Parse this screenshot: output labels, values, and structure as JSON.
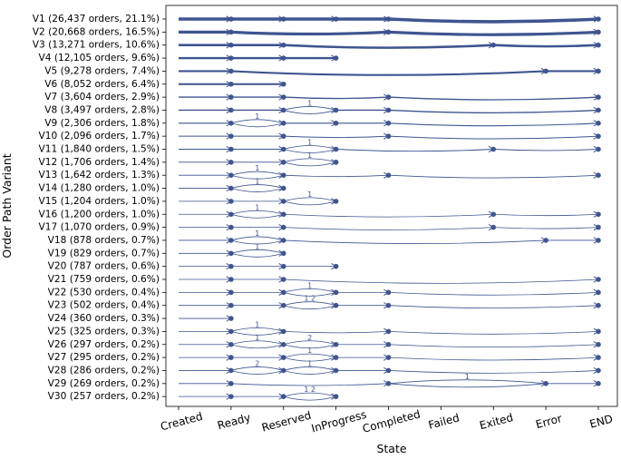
{
  "chart_data": {
    "type": "line",
    "title": "",
    "xlabel": "State",
    "ylabel": "Order Path Variant",
    "categories": [
      "Created",
      "Ready",
      "Reserved",
      "InProgress",
      "Completed",
      "Failed",
      "Exited",
      "Error",
      "END"
    ],
    "grid": false,
    "legend": "none",
    "color": "#3f5590",
    "series": [
      {
        "name": "V1 (26,437 orders, 21.1%)",
        "orders": 26437,
        "pct": 21.1,
        "path": [
          "Created",
          "Ready",
          "Reserved",
          "InProgress",
          "Completed",
          "END"
        ]
      },
      {
        "name": "V2 (20,668 orders, 16.5%)",
        "orders": 20668,
        "pct": 16.5,
        "path": [
          "Created",
          "Ready",
          "Completed",
          "END"
        ]
      },
      {
        "name": "V3 (13,271 orders, 10.6%)",
        "orders": 13271,
        "pct": 10.6,
        "path": [
          "Created",
          "Ready",
          "Reserved",
          "Exited",
          "END"
        ]
      },
      {
        "name": "V4 (12,105 orders, 9.6%)",
        "orders": 12105,
        "pct": 9.6,
        "path": [
          "Created",
          "Ready",
          "Reserved",
          "InProgress"
        ]
      },
      {
        "name": "V5 (9,278 orders, 7.4%)",
        "orders": 9278,
        "pct": 7.4,
        "path": [
          "Created",
          "Ready",
          "Error",
          "END"
        ]
      },
      {
        "name": "V6 (8,052 orders, 6.4%)",
        "orders": 8052,
        "pct": 6.4,
        "path": [
          "Created",
          "Ready",
          "Reserved"
        ]
      },
      {
        "name": "V7 (3,604 orders, 2.9%)",
        "orders": 3604,
        "pct": 2.9,
        "path": [
          "Created",
          "Ready",
          "Reserved",
          "Completed",
          "END"
        ]
      },
      {
        "name": "V8 (3,497 orders, 2.8%)",
        "orders": 3497,
        "pct": 2.8,
        "path": [
          "Created",
          "Ready",
          "Reserved",
          "InProgress",
          "Completed",
          "END"
        ],
        "loops": [
          {
            "from": "Reserved",
            "to": "InProgress",
            "label": "1"
          }
        ]
      },
      {
        "name": "V9 (2,306 orders, 1.8%)",
        "orders": 2306,
        "pct": 1.8,
        "path": [
          "Created",
          "Ready",
          "Reserved",
          "InProgress",
          "Completed",
          "END"
        ],
        "loops": [
          {
            "from": "Ready",
            "to": "Reserved",
            "label": "1"
          }
        ]
      },
      {
        "name": "V10 (2,096 orders, 1.7%)",
        "orders": 2096,
        "pct": 1.7,
        "path": [
          "Created",
          "Ready",
          "Reserved",
          "Completed",
          "END"
        ]
      },
      {
        "name": "V11 (1,840 orders, 1.5%)",
        "orders": 1840,
        "pct": 1.5,
        "path": [
          "Created",
          "Ready",
          "Reserved",
          "InProgress",
          "Exited",
          "END"
        ],
        "loops": [
          {
            "from": "Reserved",
            "to": "InProgress",
            "label": "1"
          }
        ]
      },
      {
        "name": "V12 (1,706 orders, 1.4%)",
        "orders": 1706,
        "pct": 1.4,
        "path": [
          "Created",
          "Ready",
          "Reserved",
          "InProgress"
        ],
        "loops": [
          {
            "from": "Reserved",
            "to": "InProgress",
            "label": "1"
          }
        ]
      },
      {
        "name": "V13 (1,642 orders, 1.3%)",
        "orders": 1642,
        "pct": 1.3,
        "path": [
          "Created",
          "Ready",
          "Reserved",
          "Completed",
          "END"
        ],
        "loops": [
          {
            "from": "Ready",
            "to": "Reserved",
            "label": "1"
          }
        ]
      },
      {
        "name": "V14 (1,280 orders, 1.0%)",
        "orders": 1280,
        "pct": 1.0,
        "path": [
          "Created",
          "Ready",
          "Reserved"
        ],
        "loops": [
          {
            "from": "Ready",
            "to": "Reserved",
            "label": "1"
          }
        ]
      },
      {
        "name": "V15 (1,204 orders, 1.0%)",
        "orders": 1204,
        "pct": 1.0,
        "path": [
          "Created",
          "Ready",
          "Reserved",
          "InProgress"
        ],
        "loops": [
          {
            "from": "Reserved",
            "to": "InProgress",
            "label": "1"
          }
        ]
      },
      {
        "name": "V16 (1,200 orders, 1.0%)",
        "orders": 1200,
        "pct": 1.0,
        "path": [
          "Created",
          "Ready",
          "Reserved",
          "Exited",
          "END"
        ],
        "loops": [
          {
            "from": "Ready",
            "to": "Reserved",
            "label": "1"
          }
        ]
      },
      {
        "name": "V17 (1,070 orders, 0.9%)",
        "orders": 1070,
        "pct": 0.9,
        "path": [
          "Created",
          "Ready",
          "Reserved",
          "Exited",
          "END"
        ]
      },
      {
        "name": "V18 (878 orders, 0.7%)",
        "orders": 878,
        "pct": 0.7,
        "path": [
          "Created",
          "Ready",
          "Reserved",
          "Error",
          "END"
        ],
        "loops": [
          {
            "from": "Ready",
            "to": "Reserved",
            "label": "1"
          }
        ]
      },
      {
        "name": "V19 (829 orders, 0.7%)",
        "orders": 829,
        "pct": 0.7,
        "path": [
          "Created",
          "Ready",
          "Reserved"
        ],
        "loops": [
          {
            "from": "Ready",
            "to": "Reserved",
            "label": "1"
          }
        ]
      },
      {
        "name": "V20 (787 orders, 0.6%)",
        "orders": 787,
        "pct": 0.6,
        "path": [
          "Created",
          "Ready",
          "Reserved",
          "InProgress"
        ]
      },
      {
        "name": "V21 (759 orders, 0.6%)",
        "orders": 759,
        "pct": 0.6,
        "path": [
          "Created",
          "Ready",
          "Reserved",
          "END"
        ]
      },
      {
        "name": "V22 (530 orders, 0.4%)",
        "orders": 530,
        "pct": 0.4,
        "path": [
          "Created",
          "Ready",
          "Reserved",
          "InProgress",
          "Completed",
          "END"
        ],
        "loops": [
          {
            "from": "Reserved",
            "to": "InProgress",
            "label": "1"
          }
        ]
      },
      {
        "name": "V23 (502 orders, 0.4%)",
        "orders": 502,
        "pct": 0.4,
        "path": [
          "Created",
          "Ready",
          "Reserved",
          "InProgress",
          "Completed",
          "END"
        ],
        "loops": [
          {
            "from": "Reserved",
            "to": "InProgress",
            "label": "1 2"
          }
        ]
      },
      {
        "name": "V24 (360 orders, 0.3%)",
        "orders": 360,
        "pct": 0.3,
        "path": [
          "Created",
          "Ready"
        ]
      },
      {
        "name": "V25 (325 orders, 0.3%)",
        "orders": 325,
        "pct": 0.3,
        "path": [
          "Created",
          "Ready",
          "Reserved",
          "Completed",
          "END"
        ],
        "loops": [
          {
            "from": "Ready",
            "to": "Reserved",
            "label": "1"
          }
        ]
      },
      {
        "name": "V26 (297 orders, 0.2%)",
        "orders": 297,
        "pct": 0.2,
        "path": [
          "Created",
          "Ready",
          "Reserved",
          "InProgress",
          "Completed",
          "END"
        ],
        "loops": [
          {
            "from": "Ready",
            "to": "Reserved",
            "label": "1"
          },
          {
            "from": "Reserved",
            "to": "InProgress",
            "label": "2"
          }
        ]
      },
      {
        "name": "V27 (295 orders, 0.2%)",
        "orders": 295,
        "pct": 0.2,
        "path": [
          "Created",
          "Ready",
          "Reserved",
          "InProgress",
          "Completed",
          "END"
        ],
        "loops": [
          {
            "from": "Reserved",
            "to": "InProgress",
            "label": "1"
          }
        ]
      },
      {
        "name": "V28 (286 orders, 0.2%)",
        "orders": 286,
        "pct": 0.2,
        "path": [
          "Created",
          "Ready",
          "Reserved",
          "InProgress",
          "Completed",
          "END"
        ],
        "loops": [
          {
            "from": "Ready",
            "to": "Reserved",
            "label": "2"
          },
          {
            "from": "Reserved",
            "to": "InProgress",
            "label": "1"
          }
        ]
      },
      {
        "name": "V29 (269 orders, 0.2%)",
        "orders": 269,
        "pct": 0.2,
        "path": [
          "Created",
          "Ready",
          "Completed",
          "Error",
          "END"
        ],
        "loops": [
          {
            "from": "Completed",
            "to": "Error",
            "label": "1"
          }
        ]
      },
      {
        "name": "V30 (257 orders, 0.2%)",
        "orders": 257,
        "pct": 0.2,
        "path": [
          "Created",
          "Ready",
          "Reserved",
          "InProgress"
        ],
        "loops": [
          {
            "from": "Reserved",
            "to": "InProgress",
            "label": "1 2"
          }
        ]
      }
    ]
  }
}
